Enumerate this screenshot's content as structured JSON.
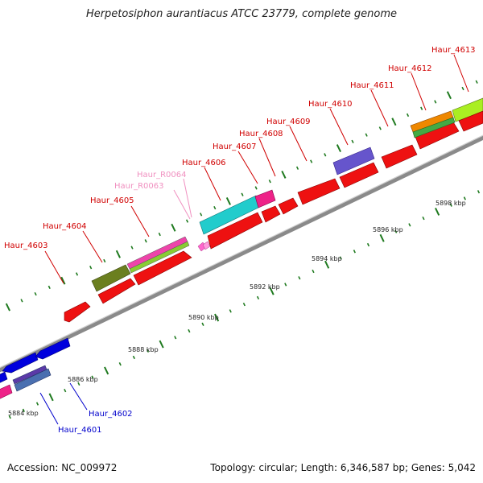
{
  "title": "Herpetosiphon aurantiacus ATCC 23779, complete genome",
  "accession": "Accession: NC_009972",
  "summary": "Topology: circular; Length: 6,346,587 bp; Genes: 5,042",
  "colors": {
    "backbone": "#8a8a8a",
    "tick_green": "#1f7a1f",
    "forward_label": "#d00000",
    "reverse_label": "#0000cc",
    "rna_label": "#f090c0"
  },
  "scale_labels": [
    "5884 kbp",
    "5886 kbp",
    "5888 kbp",
    "5890 kbp",
    "5892 kbp",
    "5894 kbp",
    "5896 kbp",
    "5898 kbp"
  ],
  "genes": [
    {
      "name": "Haur_4601",
      "color": "#4a6fb0",
      "label_color": "#0000cc"
    },
    {
      "name": "Haur_4602",
      "color": "#0000dd",
      "label_color": "#0000cc"
    },
    {
      "name": "Haur_4603",
      "color": "#ee1111",
      "label_color": "#d00000"
    },
    {
      "name": "Haur_4604",
      "color": "#6b7f1f",
      "label_color": "#d00000"
    },
    {
      "name": "Haur_4605",
      "color": "#ee1111",
      "label_color": "#d00000"
    },
    {
      "name": "Haur_R0063",
      "color": "#ff66cc",
      "label_color": "#f090c0"
    },
    {
      "name": "Haur_R0064",
      "color": "#ff99dd",
      "label_color": "#f090c0"
    },
    {
      "name": "Haur_4606",
      "color": "#22cccc",
      "label_color": "#d00000"
    },
    {
      "name": "Haur_4607",
      "color": "#ee1111",
      "label_color": "#d00000"
    },
    {
      "name": "Haur_4608",
      "color": "#ee1111",
      "label_color": "#d00000"
    },
    {
      "name": "Haur_4609",
      "color": "#ee1111",
      "label_color": "#d00000"
    },
    {
      "name": "Haur_4610",
      "color": "#6655cc",
      "label_color": "#d00000"
    },
    {
      "name": "Haur_4611",
      "color": "#ee1111",
      "label_color": "#d00000"
    },
    {
      "name": "Haur_4612",
      "color": "#ee8800",
      "label_color": "#d00000"
    },
    {
      "name": "Haur_4613",
      "color": "#aaee22",
      "label_color": "#d00000"
    }
  ]
}
